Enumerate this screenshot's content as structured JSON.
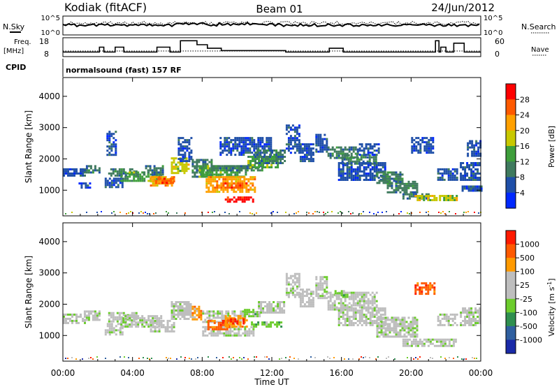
{
  "header": {
    "station": "Kodiak (fitACF)",
    "beam": "Beam 01",
    "date": "24/Jun/2012"
  },
  "status_panel": {
    "left_labels": {
      "nsky": "N.Sky",
      "freq": "Freq.",
      "freq_unit": "[MHz]",
      "cpid": "CPID"
    },
    "right_labels": {
      "nsearch": "N.Search",
      "nave": "Nave"
    },
    "nsky_ticks": [
      "10^5",
      "10^0"
    ],
    "freq_ticks": [
      "18",
      "8"
    ],
    "nave_ticks": [
      "60",
      "0"
    ],
    "cpid_text": "normalsound (fast) 157 RF",
    "freq_steps": [
      [
        0.0,
        10.4
      ],
      [
        2.1,
        13.0
      ],
      [
        2.35,
        10.4
      ],
      [
        3.0,
        13.0
      ],
      [
        3.5,
        10.4
      ],
      [
        5.4,
        13.0
      ],
      [
        6.15,
        10.4
      ],
      [
        6.75,
        16.4
      ],
      [
        7.7,
        14.3
      ],
      [
        8.3,
        12.4
      ],
      [
        9.1,
        11.2
      ],
      [
        12.6,
        11.2
      ],
      [
        12.8,
        10.4
      ],
      [
        15.3,
        12.4
      ],
      [
        16.1,
        10.4
      ],
      [
        18.0,
        10.4
      ],
      [
        21.4,
        16.4
      ],
      [
        21.6,
        10.4
      ],
      [
        21.7,
        13.0
      ],
      [
        22.0,
        10.4
      ],
      [
        22.45,
        15.1
      ],
      [
        23.05,
        10.4
      ],
      [
        24.0,
        10.4
      ]
    ]
  },
  "chart_data": [
    {
      "type": "heatmap",
      "name": "power",
      "ylabel": "Slant Range [km]",
      "xlabel": "",
      "x_ticks": [
        "00:00",
        "04:00",
        "08:00",
        "12:00",
        "16:00",
        "20:00",
        "00:00"
      ],
      "y_ticks": [
        "1000",
        "2000",
        "3000",
        "4000"
      ],
      "xlim": [
        0,
        24
      ],
      "ylim": [
        180,
        4600
      ],
      "colorbar": {
        "label": "Power [dB]",
        "ticks": [
          "4",
          "8",
          "12",
          "16",
          "20",
          "24",
          "28"
        ],
        "colors": [
          "#0028ff",
          "#1f4fa8",
          "#3f7a5e",
          "#3e9e3b",
          "#c8c800",
          "#ffa000",
          "#ff5a00",
          "#ff0000"
        ]
      },
      "regions": [
        {
          "x": [
            0.0,
            1.3
          ],
          "y": [
            1450,
            1700
          ],
          "level": 1
        },
        {
          "x": [
            1.2,
            2.1
          ],
          "y": [
            1550,
            1800
          ],
          "level": 2
        },
        {
          "x": [
            0.9,
            1.6
          ],
          "y": [
            1050,
            1250
          ],
          "level": 1
        },
        {
          "x": [
            2.5,
            3.0
          ],
          "y": [
            2100,
            2900
          ],
          "level": 1
        },
        {
          "x": [
            2.4,
            3.4
          ],
          "y": [
            1100,
            1400
          ],
          "level": 1
        },
        {
          "x": [
            2.6,
            4.2
          ],
          "y": [
            1450,
            1700
          ],
          "level": 2
        },
        {
          "x": [
            3.3,
            5.6
          ],
          "y": [
            1300,
            1600
          ],
          "level": 3
        },
        {
          "x": [
            4.6,
            5.8
          ],
          "y": [
            1500,
            1800
          ],
          "level": 2
        },
        {
          "x": [
            5.0,
            6.4
          ],
          "y": [
            1150,
            1450
          ],
          "level": 5
        },
        {
          "x": [
            5.3,
            6.3
          ],
          "y": [
            1250,
            1400
          ],
          "level": 6
        },
        {
          "x": [
            6.2,
            7.2
          ],
          "y": [
            1550,
            2050
          ],
          "level": 4
        },
        {
          "x": [
            6.6,
            7.4
          ],
          "y": [
            1900,
            2700
          ],
          "level": 1
        },
        {
          "x": [
            7.4,
            8.6
          ],
          "y": [
            1400,
            2000
          ],
          "level": 2
        },
        {
          "x": [
            7.8,
            10.5
          ],
          "y": [
            1450,
            1800
          ],
          "level": 3
        },
        {
          "x": [
            8.2,
            11.0
          ],
          "y": [
            950,
            1450
          ],
          "level": 5
        },
        {
          "x": [
            8.8,
            10.6
          ],
          "y": [
            1100,
            1250
          ],
          "level": 6
        },
        {
          "x": [
            9.3,
            10.9
          ],
          "y": [
            650,
            800
          ],
          "level": 7
        },
        {
          "x": [
            8.5,
            11.5
          ],
          "y": [
            1600,
            1800
          ],
          "level": 2
        },
        {
          "x": [
            9.0,
            12.0
          ],
          "y": [
            2100,
            2700
          ],
          "level": 1
        },
        {
          "x": [
            10.6,
            12.3
          ],
          "y": [
            1700,
            2100
          ],
          "level": 3
        },
        {
          "x": [
            11.0,
            12.7
          ],
          "y": [
            1850,
            2300
          ],
          "level": 2
        },
        {
          "x": [
            12.8,
            13.6
          ],
          "y": [
            2200,
            3100
          ],
          "level": 1
        },
        {
          "x": [
            13.6,
            14.4
          ],
          "y": [
            1900,
            2500
          ],
          "level": 1
        },
        {
          "x": [
            14.5,
            15.2
          ],
          "y": [
            2200,
            2800
          ],
          "level": 1
        },
        {
          "x": [
            15.2,
            17.0
          ],
          "y": [
            2000,
            2400
          ],
          "level": 2
        },
        {
          "x": [
            16.0,
            18.0
          ],
          "y": [
            1850,
            2150
          ],
          "level": 2
        },
        {
          "x": [
            17.0,
            18.2
          ],
          "y": [
            2100,
            2500
          ],
          "level": 1
        },
        {
          "x": [
            15.8,
            18.5
          ],
          "y": [
            1300,
            1900
          ],
          "level": 1
        },
        {
          "x": [
            18.0,
            19.5
          ],
          "y": [
            1200,
            1600
          ],
          "level": 2
        },
        {
          "x": [
            18.6,
            20.3
          ],
          "y": [
            950,
            1300
          ],
          "level": 2
        },
        {
          "x": [
            19.5,
            21.0
          ],
          "y": [
            700,
            900
          ],
          "level": 2
        },
        {
          "x": [
            20.2,
            21.5
          ],
          "y": [
            650,
            850
          ],
          "level": 4
        },
        {
          "x": [
            21.6,
            22.6
          ],
          "y": [
            650,
            850
          ],
          "level": 4
        },
        {
          "x": [
            20.0,
            21.3
          ],
          "y": [
            2200,
            2700
          ],
          "level": 1
        },
        {
          "x": [
            21.5,
            22.6
          ],
          "y": [
            1300,
            1700
          ],
          "level": 1
        },
        {
          "x": [
            22.8,
            24.0
          ],
          "y": [
            1300,
            1900
          ],
          "level": 1
        },
        {
          "x": [
            22.9,
            24.0
          ],
          "y": [
            950,
            1150
          ],
          "level": 1
        },
        {
          "x": [
            23.2,
            24.0
          ],
          "y": [
            2100,
            2600
          ],
          "level": 1
        }
      ]
    },
    {
      "type": "heatmap",
      "name": "velocity",
      "ylabel": "Slant Range [km]",
      "xlabel": "Time UT",
      "x_ticks": [
        "00:00",
        "04:00",
        "08:00",
        "12:00",
        "16:00",
        "20:00",
        "00:00"
      ],
      "y_ticks": [
        "1000",
        "2000",
        "3000",
        "4000"
      ],
      "xlim": [
        0,
        24
      ],
      "ylim": [
        180,
        4600
      ],
      "colorbar": {
        "label": "Velocity [m s-1]",
        "label_parts": [
          "Velocity [m s",
          "-1",
          "]"
        ],
        "ticks": [
          "1000",
          "500",
          "100",
          "25",
          "-25",
          "-100",
          "-500",
          "-1000"
        ],
        "colors": [
          "#1a2aa8",
          "#2f5f9f",
          "#2f8f4f",
          "#6ccc2c",
          "#bebebe",
          "#bebebe",
          "#ff9a00",
          "#ff5a00",
          "#ff1a00"
        ]
      },
      "regions": [
        {
          "x": [
            0.0,
            1.3
          ],
          "y": [
            1400,
            1700
          ],
          "level": 4
        },
        {
          "x": [
            1.2,
            2.1
          ],
          "y": [
            1500,
            1800
          ],
          "level": 4
        },
        {
          "x": [
            2.4,
            3.4
          ],
          "y": [
            1050,
            1400
          ],
          "level": 4
        },
        {
          "x": [
            2.6,
            4.2
          ],
          "y": [
            1450,
            1750
          ],
          "level": 4
        },
        {
          "x": [
            3.3,
            5.6
          ],
          "y": [
            1250,
            1650
          ],
          "level": 4
        },
        {
          "x": [
            5.0,
            6.4
          ],
          "y": [
            1150,
            1500
          ],
          "level": 4
        },
        {
          "x": [
            6.2,
            7.3
          ],
          "y": [
            1500,
            2100
          ],
          "level": 4
        },
        {
          "x": [
            7.4,
            8.0
          ],
          "y": [
            1500,
            1950
          ],
          "level": 6
        },
        {
          "x": [
            8.0,
            10.5
          ],
          "y": [
            1450,
            1800
          ],
          "level": 4
        },
        {
          "x": [
            8.0,
            11.0
          ],
          "y": [
            1000,
            1300
          ],
          "level": 4
        },
        {
          "x": [
            8.3,
            9.6
          ],
          "y": [
            1200,
            1500
          ],
          "level": 7
        },
        {
          "x": [
            9.3,
            10.6
          ],
          "y": [
            1300,
            1650
          ],
          "level": 6
        },
        {
          "x": [
            9.6,
            10.4
          ],
          "y": [
            1350,
            1550
          ],
          "level": 8
        },
        {
          "x": [
            10.8,
            12.6
          ],
          "y": [
            1250,
            1450
          ],
          "level": 3
        },
        {
          "x": [
            10.4,
            11.3
          ],
          "y": [
            1600,
            1850
          ],
          "level": 3
        },
        {
          "x": [
            11.2,
            12.7
          ],
          "y": [
            1700,
            2100
          ],
          "level": 4
        },
        {
          "x": [
            12.8,
            13.6
          ],
          "y": [
            2200,
            3000
          ],
          "level": 4
        },
        {
          "x": [
            13.6,
            14.4
          ],
          "y": [
            1900,
            2500
          ],
          "level": 4
        },
        {
          "x": [
            14.5,
            15.2
          ],
          "y": [
            2200,
            2900
          ],
          "level": 4
        },
        {
          "x": [
            15.2,
            18.0
          ],
          "y": [
            1850,
            2400
          ],
          "level": 4
        },
        {
          "x": [
            15.6,
            16.2
          ],
          "y": [
            2250,
            2450
          ],
          "level": 3
        },
        {
          "x": [
            15.8,
            18.5
          ],
          "y": [
            1300,
            1900
          ],
          "level": 4
        },
        {
          "x": [
            18.0,
            20.3
          ],
          "y": [
            950,
            1600
          ],
          "level": 4
        },
        {
          "x": [
            19.5,
            22.6
          ],
          "y": [
            650,
            900
          ],
          "level": 4
        },
        {
          "x": [
            20.2,
            21.3
          ],
          "y": [
            2350,
            2700
          ],
          "level": 7
        },
        {
          "x": [
            21.5,
            22.6
          ],
          "y": [
            1300,
            1700
          ],
          "level": 4
        },
        {
          "x": [
            22.8,
            24.0
          ],
          "y": [
            1300,
            1900
          ],
          "level": 4
        }
      ]
    }
  ]
}
